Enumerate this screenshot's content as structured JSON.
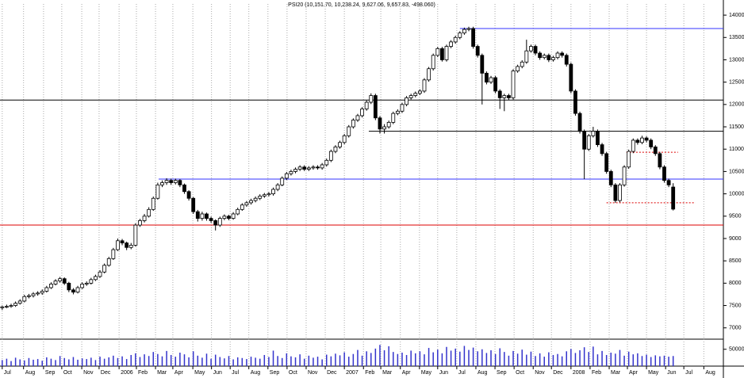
{
  "chart_data": {
    "type": "candlestick",
    "title": "PSI20 (10,151.70, 10,238.24, 9,627.06, 9,657.83, -498.060)",
    "x": [
      0,
      1,
      2,
      3,
      4,
      5,
      6,
      7,
      8,
      9,
      10,
      11,
      12,
      13,
      14,
      15,
      16,
      17,
      18,
      19,
      20,
      21,
      22,
      23,
      24,
      25,
      26,
      27,
      28,
      29,
      30,
      31,
      32,
      33,
      34,
      35,
      36,
      37,
      38,
      39,
      40,
      41,
      42,
      43,
      44,
      45,
      46,
      47,
      48,
      49,
      50,
      51,
      52,
      53,
      54,
      55,
      56,
      57,
      58,
      59,
      60,
      61,
      62,
      63,
      64,
      65,
      66,
      67,
      68,
      69,
      70,
      71,
      72,
      73,
      74,
      75,
      76,
      77,
      78,
      79,
      80,
      81,
      82,
      83,
      84,
      85,
      86,
      87,
      88,
      89,
      90,
      91,
      92,
      93,
      94,
      95,
      96,
      97,
      98,
      99,
      100,
      101,
      102,
      103,
      104,
      105,
      106,
      107,
      108,
      109,
      110,
      111,
      112,
      113,
      114,
      115,
      116,
      117,
      118,
      119,
      120,
      121,
      122,
      123,
      124,
      125,
      126,
      127,
      128,
      129,
      130,
      131,
      132,
      133,
      134,
      135,
      136,
      137,
      138,
      139,
      140,
      141,
      142,
      143,
      144,
      145,
      146,
      147,
      148,
      149,
      150,
      151
    ],
    "open": [
      7450,
      7470,
      7480,
      7500,
      7550,
      7600,
      7700,
      7720,
      7760,
      7780,
      7820,
      7900,
      7980,
      8050,
      8100,
      8000,
      7850,
      7800,
      7900,
      7980,
      8000,
      8080,
      8150,
      8250,
      8400,
      8550,
      8750,
      8950,
      8900,
      8800,
      8850,
      9300,
      9400,
      9500,
      9650,
      9900,
      10200,
      10250,
      10300,
      10250,
      10300,
      10200,
      10050,
      9900,
      9600,
      9450,
      9550,
      9450,
      9400,
      9300,
      9450,
      9500,
      9450,
      9550,
      9650,
      9750,
      9800,
      9850,
      9900,
      9950,
      9980,
      10000,
      10100,
      10200,
      10350,
      10450,
      10500,
      10550,
      10600,
      10550,
      10580,
      10600,
      10580,
      10650,
      10750,
      10950,
      11050,
      11150,
      11300,
      11500,
      11650,
      11750,
      11900,
      12050,
      12200,
      11700,
      11450,
      11500,
      11600,
      11800,
      11850,
      12000,
      12150,
      12200,
      12250,
      12300,
      12550,
      12800,
      13100,
      13250,
      13000,
      13300,
      13400,
      13500,
      13600,
      13680,
      13700,
      13300,
      13100,
      12700,
      12500,
      12600,
      12300,
      12150,
      12200,
      12150,
      12750,
      12850,
      12950,
      13200,
      13300,
      13150,
      13050,
      13100,
      13000,
      13050,
      13150,
      13100,
      12900,
      12300,
      11800,
      11400,
      11000,
      11300,
      11400,
      11100,
      10900,
      10500,
      10200,
      9850,
      10200,
      10600,
      10950,
      11200,
      11150,
      11250,
      11200,
      11050,
      10900,
      10600,
      10300,
      10152
    ],
    "high": [
      7500,
      7520,
      7540,
      7590,
      7640,
      7740,
      7760,
      7800,
      7820,
      7860,
      7940,
      8020,
      8090,
      8140,
      8130,
      8030,
      7890,
      7940,
      8020,
      8040,
      8120,
      8190,
      8290,
      8440,
      8590,
      8790,
      9000,
      8990,
      8930,
      8900,
      9340,
      9440,
      9550,
      9700,
      9940,
      10250,
      10300,
      10350,
      10340,
      10340,
      10330,
      10230,
      10080,
      9930,
      9640,
      9600,
      9580,
      9490,
      9430,
      9490,
      9540,
      9530,
      9590,
      9690,
      9790,
      9840,
      9890,
      9940,
      9990,
      10020,
      10040,
      10140,
      10240,
      10390,
      10490,
      10540,
      10590,
      10640,
      10640,
      10620,
      10640,
      10640,
      10690,
      10790,
      10990,
      11090,
      11190,
      11340,
      11540,
      11690,
      11790,
      11940,
      12090,
      12250,
      12240,
      11740,
      11560,
      11640,
      11840,
      11890,
      12040,
      12190,
      12240,
      12290,
      12340,
      12590,
      12840,
      13140,
      13290,
      13290,
      13340,
      13440,
      13540,
      13640,
      13720,
      13740,
      13740,
      13340,
      13140,
      12740,
      12640,
      12640,
      12340,
      12240,
      12240,
      12790,
      12890,
      12990,
      13450,
      13340,
      13340,
      13190,
      13140,
      13140,
      13090,
      13190,
      13190,
      13140,
      12940,
      12340,
      11840,
      11440,
      11340,
      11500,
      11440,
      11140,
      10940,
      10540,
      10240,
      10240,
      10640,
      10990,
      11240,
      11240,
      11300,
      11290,
      11240,
      11090,
      10940,
      10640,
      10340,
      10238
    ],
    "low": [
      7400,
      7440,
      7450,
      7470,
      7520,
      7570,
      7660,
      7680,
      7720,
      7740,
      7790,
      7870,
      7950,
      8010,
      7960,
      7800,
      7750,
      7770,
      7870,
      7940,
      7970,
      8050,
      8120,
      8220,
      8370,
      8520,
      8720,
      8850,
      8740,
      8760,
      8820,
      9260,
      9360,
      9470,
      9620,
      9870,
      10150,
      10200,
      10200,
      10210,
      10150,
      10000,
      9850,
      9550,
      9380,
      9400,
      9400,
      9350,
      9180,
      9260,
      9410,
      9410,
      9420,
      9520,
      9620,
      9710,
      9760,
      9810,
      9860,
      9910,
      9940,
      9960,
      10060,
      10170,
      10310,
      10410,
      10460,
      10510,
      10510,
      10510,
      10540,
      10540,
      10540,
      10610,
      10710,
      10910,
      11010,
      11110,
      11260,
      11460,
      11610,
      11710,
      11860,
      12010,
      11650,
      11350,
      11350,
      11460,
      11560,
      11760,
      11810,
      11960,
      12110,
      12160,
      12210,
      12260,
      12510,
      12760,
      13060,
      12960,
      12960,
      13260,
      13360,
      13460,
      13560,
      13640,
      13250,
      13050,
      12000,
      12450,
      12460,
      12250,
      11900,
      11850,
      12100,
      12110,
      12710,
      12810,
      12910,
      13160,
      13100,
      13000,
      13010,
      12950,
      12960,
      13010,
      13050,
      12850,
      12250,
      11750,
      11350,
      10330,
      10960,
      11260,
      11050,
      10850,
      10450,
      10150,
      9800,
      9810,
      10160,
      10560,
      10910,
      11100,
      11110,
      11150,
      11000,
      10850,
      10550,
      10250,
      10150,
      9627
    ],
    "close": [
      7470,
      7480,
      7500,
      7550,
      7600,
      7700,
      7720,
      7760,
      7780,
      7820,
      7900,
      7980,
      8050,
      8100,
      8000,
      7850,
      7800,
      7900,
      7980,
      8000,
      8080,
      8150,
      8250,
      8400,
      8550,
      8750,
      8950,
      8900,
      8800,
      8850,
      9300,
      9400,
      9500,
      9650,
      9900,
      10200,
      10250,
      10300,
      10250,
      10300,
      10200,
      10050,
      9900,
      9600,
      9450,
      9550,
      9450,
      9400,
      9300,
      9450,
      9500,
      9450,
      9550,
      9650,
      9750,
      9800,
      9850,
      9900,
      9950,
      9980,
      10000,
      10100,
      10200,
      10350,
      10450,
      10500,
      10550,
      10600,
      10550,
      10580,
      10600,
      10580,
      10650,
      10750,
      10950,
      11050,
      11150,
      11300,
      11500,
      11650,
      11750,
      11900,
      12050,
      12200,
      11700,
      11450,
      11500,
      11600,
      11800,
      11850,
      12000,
      12150,
      12200,
      12250,
      12300,
      12550,
      12800,
      13100,
      13250,
      13000,
      13300,
      13400,
      13500,
      13600,
      13680,
      13700,
      13300,
      13100,
      12700,
      12500,
      12600,
      12300,
      12150,
      12200,
      12150,
      12750,
      12850,
      12950,
      13200,
      13300,
      13150,
      13050,
      13100,
      13000,
      13050,
      13150,
      13100,
      12900,
      12300,
      11800,
      11400,
      11000,
      11300,
      11400,
      11100,
      10900,
      10500,
      10200,
      9850,
      10200,
      10600,
      10950,
      11200,
      11150,
      11250,
      11200,
      11050,
      10900,
      10600,
      10300,
      10200,
      9658
    ],
    "volume": [
      18000,
      22000,
      15000,
      25000,
      20000,
      17000,
      24000,
      19000,
      21000,
      16000,
      26000,
      22000,
      18000,
      30000,
      24000,
      20000,
      27000,
      19000,
      23000,
      21000,
      25000,
      18000,
      28000,
      22000,
      26000,
      31000,
      24000,
      29000,
      21000,
      33000,
      38000,
      27000,
      35000,
      30000,
      42000,
      36000,
      29000,
      45000,
      33000,
      28000,
      40000,
      35000,
      26000,
      44000,
      31000,
      25000,
      37000,
      22000,
      34000,
      27000,
      23000,
      30000,
      20000,
      26000,
      24000,
      21000,
      28000,
      25000,
      22000,
      33000,
      27000,
      46000,
      30000,
      24000,
      38000,
      29000,
      26000,
      35000,
      22000,
      31000,
      25000,
      28000,
      20000,
      34000,
      29000,
      37000,
      32000,
      41000,
      28000,
      36000,
      48000,
      31000,
      44000,
      39000,
      52000,
      63000,
      47000,
      59000,
      42000,
      36000,
      40000,
      33000,
      46000,
      38000,
      44000,
      35000,
      54000,
      41000,
      49000,
      38000,
      57000,
      46000,
      52000,
      43000,
      60000,
      48000,
      55000,
      44000,
      50000,
      39000,
      47000,
      36000,
      53000,
      42000,
      31000,
      45000,
      37000,
      49000,
      34000,
      43000,
      30000,
      38000,
      28000,
      41000,
      33000,
      36000,
      29000,
      44000,
      51000,
      39000,
      47000,
      56000,
      42000,
      58000,
      35000,
      45000,
      33000,
      40000,
      37000,
      48000,
      31000,
      43000,
      35000,
      38000,
      30000,
      34000,
      27000,
      32000,
      29000,
      31000,
      28000,
      30000
    ],
    "xlim": [
      -0.5,
      162.3
    ],
    "xticks": [
      {
        "value": 0,
        "label": "Jul"
      },
      {
        "value": 4.8,
        "label": "Aug"
      },
      {
        "value": 9.3,
        "label": "Sep"
      },
      {
        "value": 13.4,
        "label": "Oct"
      },
      {
        "value": 17.9,
        "label": "Nov"
      },
      {
        "value": 21.8,
        "label": "Dec"
      },
      {
        "value": 26.3,
        "label": "2006"
      },
      {
        "value": 30.2,
        "label": "Feb"
      },
      {
        "value": 34.5,
        "label": "Mar"
      },
      {
        "value": 38.4,
        "label": "Apr"
      },
      {
        "value": 42.9,
        "label": "May"
      },
      {
        "value": 47.1,
        "label": "Jun"
      },
      {
        "value": 51.3,
        "label": "Jul"
      },
      {
        "value": 55.5,
        "label": "Aug"
      },
      {
        "value": 59.8,
        "label": "Sep"
      },
      {
        "value": 64.1,
        "label": "Oct"
      },
      {
        "value": 68.4,
        "label": "Nov"
      },
      {
        "value": 72.7,
        "label": "Dec"
      },
      {
        "value": 77,
        "label": "2007"
      },
      {
        "value": 81.3,
        "label": "Feb"
      },
      {
        "value": 85.2,
        "label": "Mar"
      },
      {
        "value": 89.6,
        "label": "Apr"
      },
      {
        "value": 93.9,
        "label": "May"
      },
      {
        "value": 98,
        "label": "Jun"
      },
      {
        "value": 102.3,
        "label": "Jul"
      },
      {
        "value": 106.6,
        "label": "Aug"
      },
      {
        "value": 110.9,
        "label": "Sep"
      },
      {
        "value": 115.2,
        "label": "Oct"
      },
      {
        "value": 119.5,
        "label": "Nov"
      },
      {
        "value": 123.6,
        "label": "Dec"
      },
      {
        "value": 128,
        "label": "2008"
      },
      {
        "value": 132.3,
        "label": "Feb"
      },
      {
        "value": 136.6,
        "label": "Mar"
      },
      {
        "value": 140.7,
        "label": "Apr"
      },
      {
        "value": 145,
        "label": "May"
      },
      {
        "value": 149.3,
        "label": "Jun"
      },
      {
        "value": 153.4,
        "label": "Jul"
      },
      {
        "value": 157.9,
        "label": "Aug"
      }
    ],
    "ylim": [
      6800,
      14250
    ],
    "yticks": [
      7000,
      7500,
      8000,
      8500,
      9000,
      9500,
      10000,
      10500,
      11000,
      11500,
      12000,
      12500,
      13000,
      13500,
      14000
    ],
    "volume_lim": [
      0,
      80000
    ],
    "volume_ticks": [
      50000
    ],
    "volume_color": "#3333cc",
    "hlines": [
      {
        "value": 13700,
        "color": "#3333ff",
        "x_from": 103,
        "dashed": false
      },
      {
        "value": 12100,
        "color": "#000000",
        "dashed": false
      },
      {
        "value": 11400,
        "color": "#000000",
        "x_from": 82.5,
        "dashed": false
      },
      {
        "value": 10330,
        "color": "#3333ff",
        "x_from": 35.2,
        "dashed": false
      },
      {
        "value": 9300,
        "color": "#dd0000",
        "dashed": false
      },
      {
        "value": 10930,
        "color": "#dd0000",
        "x_from": 140.5,
        "x_to": 152.1,
        "dashed": true
      },
      {
        "value": 9800,
        "color": "#dd0000",
        "x_from": 136,
        "x_to": 156,
        "dashed": true
      }
    ],
    "grid": true
  }
}
